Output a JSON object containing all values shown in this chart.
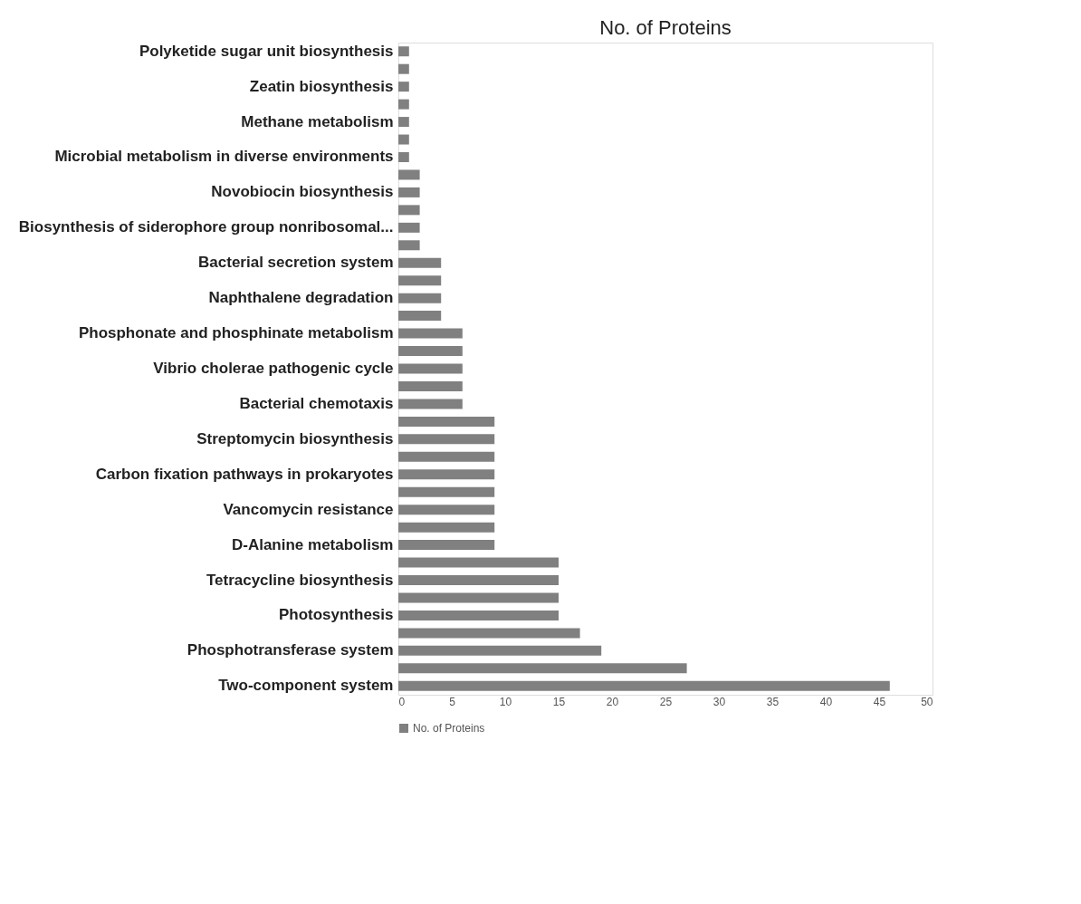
{
  "chart_data": {
    "type": "bar",
    "orientation": "horizontal",
    "title": "No. of Proteins",
    "categories": [
      "Polyketide sugar unit biosynthesis",
      null,
      "Zeatin biosynthesis",
      null,
      "Methane metabolism",
      null,
      "Microbial metabolism in diverse environments",
      null,
      "Novobiocin biosynthesis",
      null,
      "Biosynthesis of siderophore group nonribosomal...",
      null,
      "Bacterial secretion system",
      null,
      "Naphthalene degradation",
      null,
      "Phosphonate and phosphinate metabolism",
      null,
      "Vibrio cholerae pathogenic cycle",
      null,
      "Bacterial chemotaxis",
      null,
      "Streptomycin biosynthesis",
      null,
      "Carbon fixation pathways in prokaryotes",
      null,
      "Vancomycin resistance",
      null,
      "D-Alanine metabolism",
      null,
      "Tetracycline biosynthesis",
      null,
      "Photosynthesis",
      null,
      "Phosphotransferase system",
      null,
      "Two-component system"
    ],
    "series": [
      {
        "name": "No. of Proteins",
        "color": "#808080",
        "values": [
          1,
          1,
          1,
          1,
          1,
          1,
          1,
          2,
          2,
          2,
          2,
          2,
          4,
          4,
          4,
          4,
          6,
          6,
          6,
          6,
          6,
          9,
          9,
          9,
          9,
          9,
          9,
          9,
          9,
          15,
          15,
          15,
          15,
          17,
          19,
          27,
          46
        ]
      }
    ],
    "xlim": [
      0,
      50
    ],
    "xticks": [
      0,
      5,
      10,
      15,
      20,
      25,
      30,
      35,
      40,
      45,
      50
    ],
    "grid": false,
    "legend": "bottom"
  }
}
